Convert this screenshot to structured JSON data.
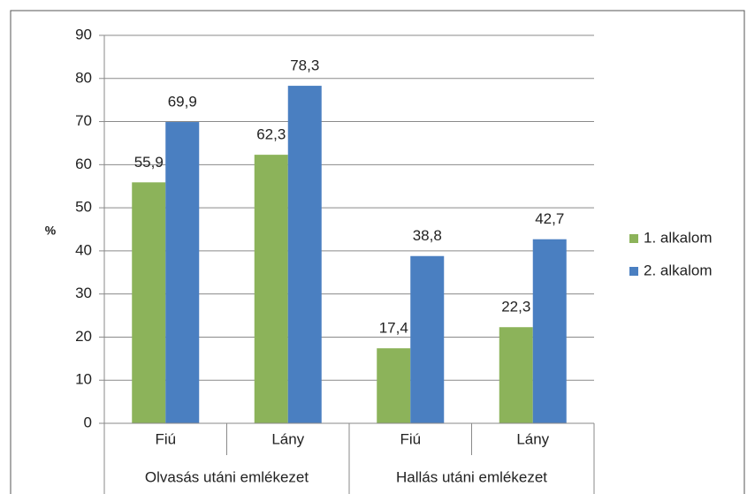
{
  "chart_data": {
    "type": "bar",
    "y_label": "%",
    "categories": [
      "Fiú",
      "Lány",
      "Fiú",
      "Lány"
    ],
    "category_groups": [
      "Olvasás utáni emlékezet",
      "Hallás utáni emlékezet"
    ],
    "series": [
      {
        "name": "1. alkalom",
        "color": "#8cb35a",
        "values": [
          55.9,
          62.3,
          17.4,
          22.3
        ],
        "value_labels": [
          "55,9",
          "62,3",
          "17,4",
          "22,3"
        ]
      },
      {
        "name": "2. alkalom",
        "color": "#4a7fc1",
        "values": [
          69.9,
          78.3,
          38.8,
          42.7
        ],
        "value_labels": [
          "69,9",
          "78,3",
          "38,8",
          "42,7"
        ]
      }
    ],
    "ylim": [
      0,
      90
    ],
    "yticks": [
      0,
      10,
      20,
      30,
      40,
      50,
      60,
      70,
      80,
      90
    ],
    "grid": true,
    "legend": "right"
  }
}
